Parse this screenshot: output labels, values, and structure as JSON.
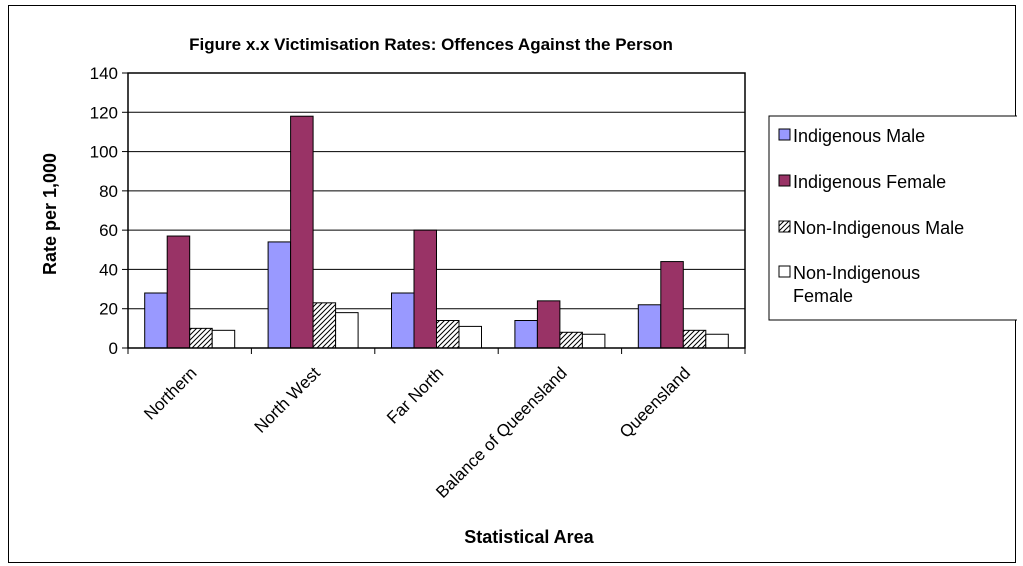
{
  "chart_data": {
    "type": "bar",
    "title": "Figure x.x Victimisation Rates: Offences Against the Person",
    "xlabel": "Statistical Area",
    "ylabel": "Rate per 1,000",
    "ylim": [
      0,
      140
    ],
    "yticks": [
      0,
      20,
      40,
      60,
      80,
      100,
      120,
      140
    ],
    "grid": true,
    "legend_position": "right",
    "categories": [
      "Northern",
      "North West",
      "Far North",
      "Balance of Queensland",
      "Queensland"
    ],
    "series": [
      {
        "name": "Indigenous Male",
        "values": [
          28,
          54,
          28,
          14,
          22
        ],
        "color": "#9999ff",
        "pattern": "solid"
      },
      {
        "name": "Indigenous Female",
        "values": [
          57,
          118,
          60,
          24,
          44
        ],
        "color": "#993366",
        "pattern": "solid"
      },
      {
        "name": "Non-Indigenous Male",
        "values": [
          10,
          23,
          14,
          8,
          9
        ],
        "color": "#ffffff",
        "pattern": "hatch"
      },
      {
        "name": "Non-Indigenous Female",
        "values": [
          9,
          18,
          11,
          7,
          7
        ],
        "color": "#ffffff",
        "pattern": "solid"
      }
    ]
  }
}
